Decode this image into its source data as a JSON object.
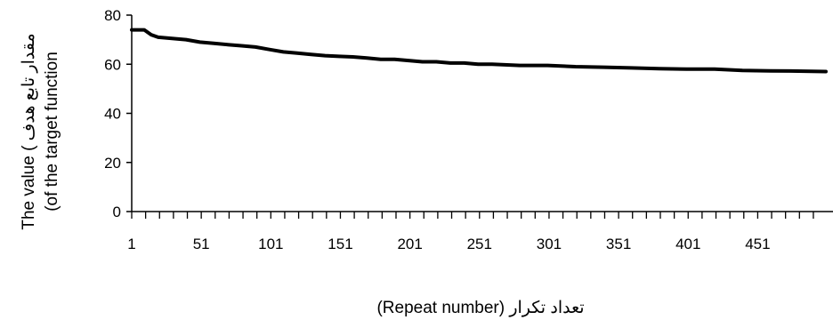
{
  "chart_data": {
    "type": "line",
    "title": "",
    "xlabel": "تعداد تکرار (Repeat number)",
    "ylabel_line1": "The value ( مقدار تابع هدف",
    "ylabel_line2": "(of the target function",
    "xlim": [
      1,
      500
    ],
    "ylim": [
      0,
      80
    ],
    "y_ticks": [
      0,
      20,
      40,
      60,
      80
    ],
    "x_tick_labels": [
      "1",
      "51",
      "101",
      "151",
      "201",
      "251",
      "301",
      "351",
      "401",
      "451"
    ],
    "x_tick_values": [
      1,
      51,
      101,
      151,
      201,
      251,
      301,
      351,
      401,
      451
    ],
    "x_minor_tick_step": 10,
    "grid": false,
    "legend": "none",
    "color": "#000000",
    "series": [
      {
        "x": [
          1,
          10,
          15,
          20,
          30,
          40,
          50,
          60,
          70,
          80,
          90,
          100,
          110,
          120,
          130,
          140,
          150,
          160,
          170,
          180,
          190,
          200,
          210,
          220,
          230,
          240,
          250,
          260,
          280,
          300,
          320,
          340,
          360,
          380,
          400,
          420,
          440,
          460,
          480,
          500
        ],
        "y": [
          74,
          74,
          72,
          71,
          70.5,
          70,
          69,
          68.5,
          68,
          67.5,
          67,
          66,
          65,
          64.5,
          64,
          63.5,
          63.2,
          63,
          62.5,
          62,
          62,
          61.5,
          61,
          61,
          60.5,
          60.5,
          60,
          60,
          59.5,
          59.5,
          59,
          58.8,
          58.5,
          58.2,
          58,
          58,
          57.5,
          57.3,
          57.2,
          57
        ]
      }
    ]
  }
}
